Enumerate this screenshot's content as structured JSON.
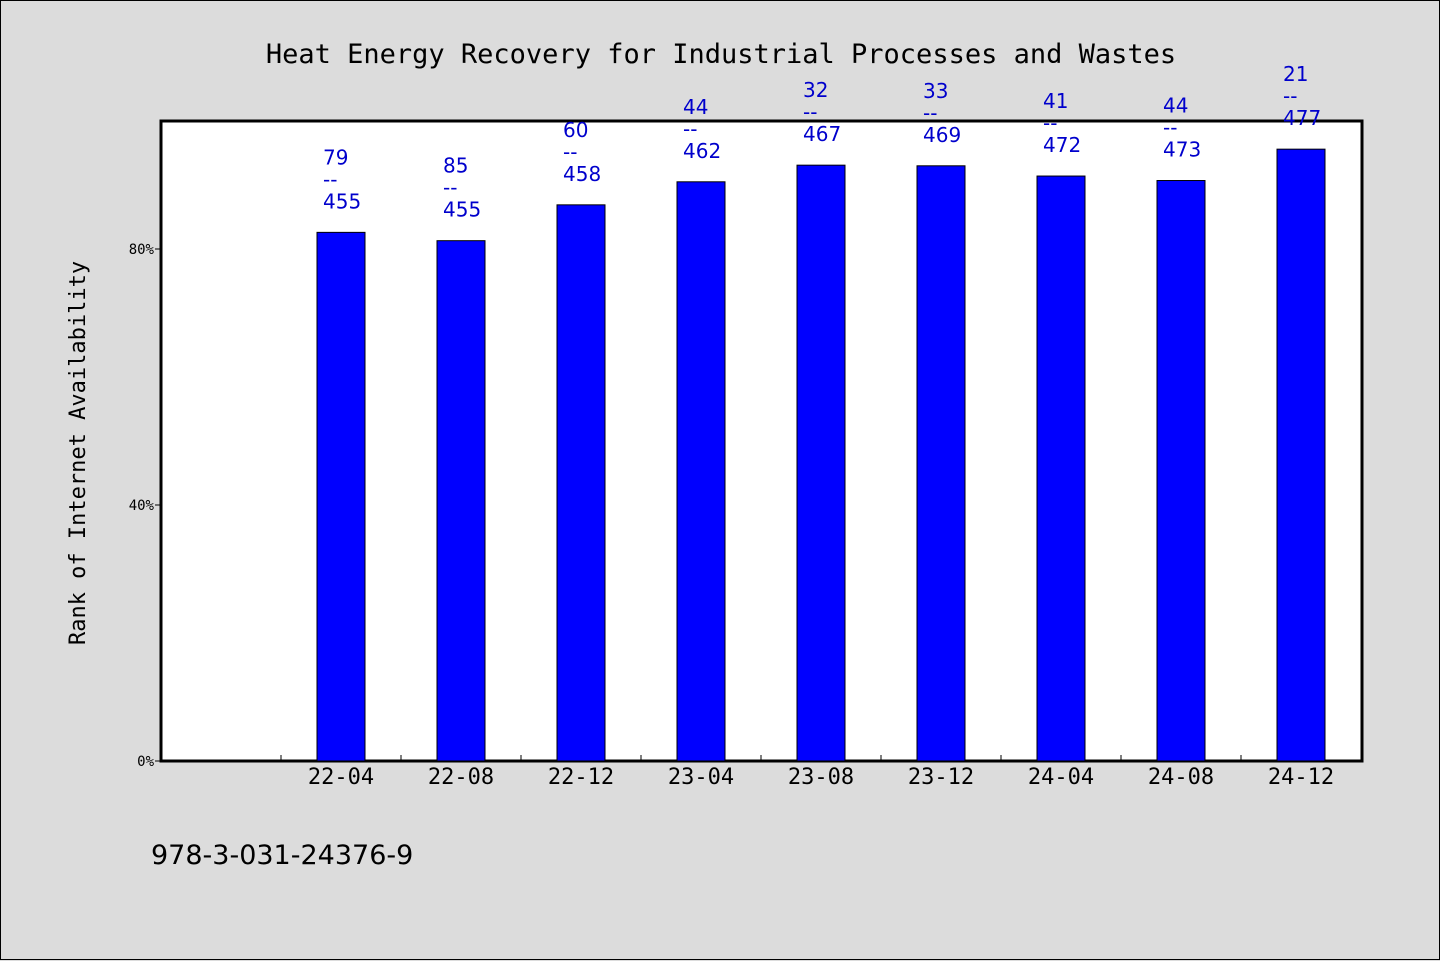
{
  "title": "Heat Energy Recovery for Industrial Processes and Wastes",
  "isbn": "978-3-031-24376-9",
  "colors": {
    "bar": "#0000ff",
    "label": "#0000cc",
    "background": "#dcdcdc",
    "plot": "#ffffff",
    "axis": "#000000"
  },
  "chart_data": {
    "type": "bar",
    "title": "Heat Energy Recovery for Industrial Processes and Wastes",
    "ylabel": "Rank of Internet Availability",
    "xlabel": "",
    "ylim": [
      0,
      100
    ],
    "ytick_values": [
      0,
      40,
      80
    ],
    "ytick_labels": [
      "0%",
      "40%",
      "80%"
    ],
    "grid": false,
    "categories": [
      "22-04",
      "22-08",
      "22-12",
      "23-04",
      "23-08",
      "23-12",
      "24-04",
      "24-08",
      "24-12"
    ],
    "values": [
      82.6,
      81.3,
      86.9,
      90.5,
      93.1,
      93.0,
      91.4,
      90.7,
      95.6
    ],
    "annotations": [
      {
        "rank": "79",
        "sep": "--",
        "total": "455"
      },
      {
        "rank": "85",
        "sep": "--",
        "total": "455"
      },
      {
        "rank": "60",
        "sep": "--",
        "total": "458"
      },
      {
        "rank": "44",
        "sep": "--",
        "total": "462"
      },
      {
        "rank": "32",
        "sep": "--",
        "total": "467"
      },
      {
        "rank": "33",
        "sep": "--",
        "total": "469"
      },
      {
        "rank": "41",
        "sep": "--",
        "total": "472"
      },
      {
        "rank": "44",
        "sep": "--",
        "total": "473"
      },
      {
        "rank": "21",
        "sep": "--",
        "total": "477"
      }
    ]
  }
}
